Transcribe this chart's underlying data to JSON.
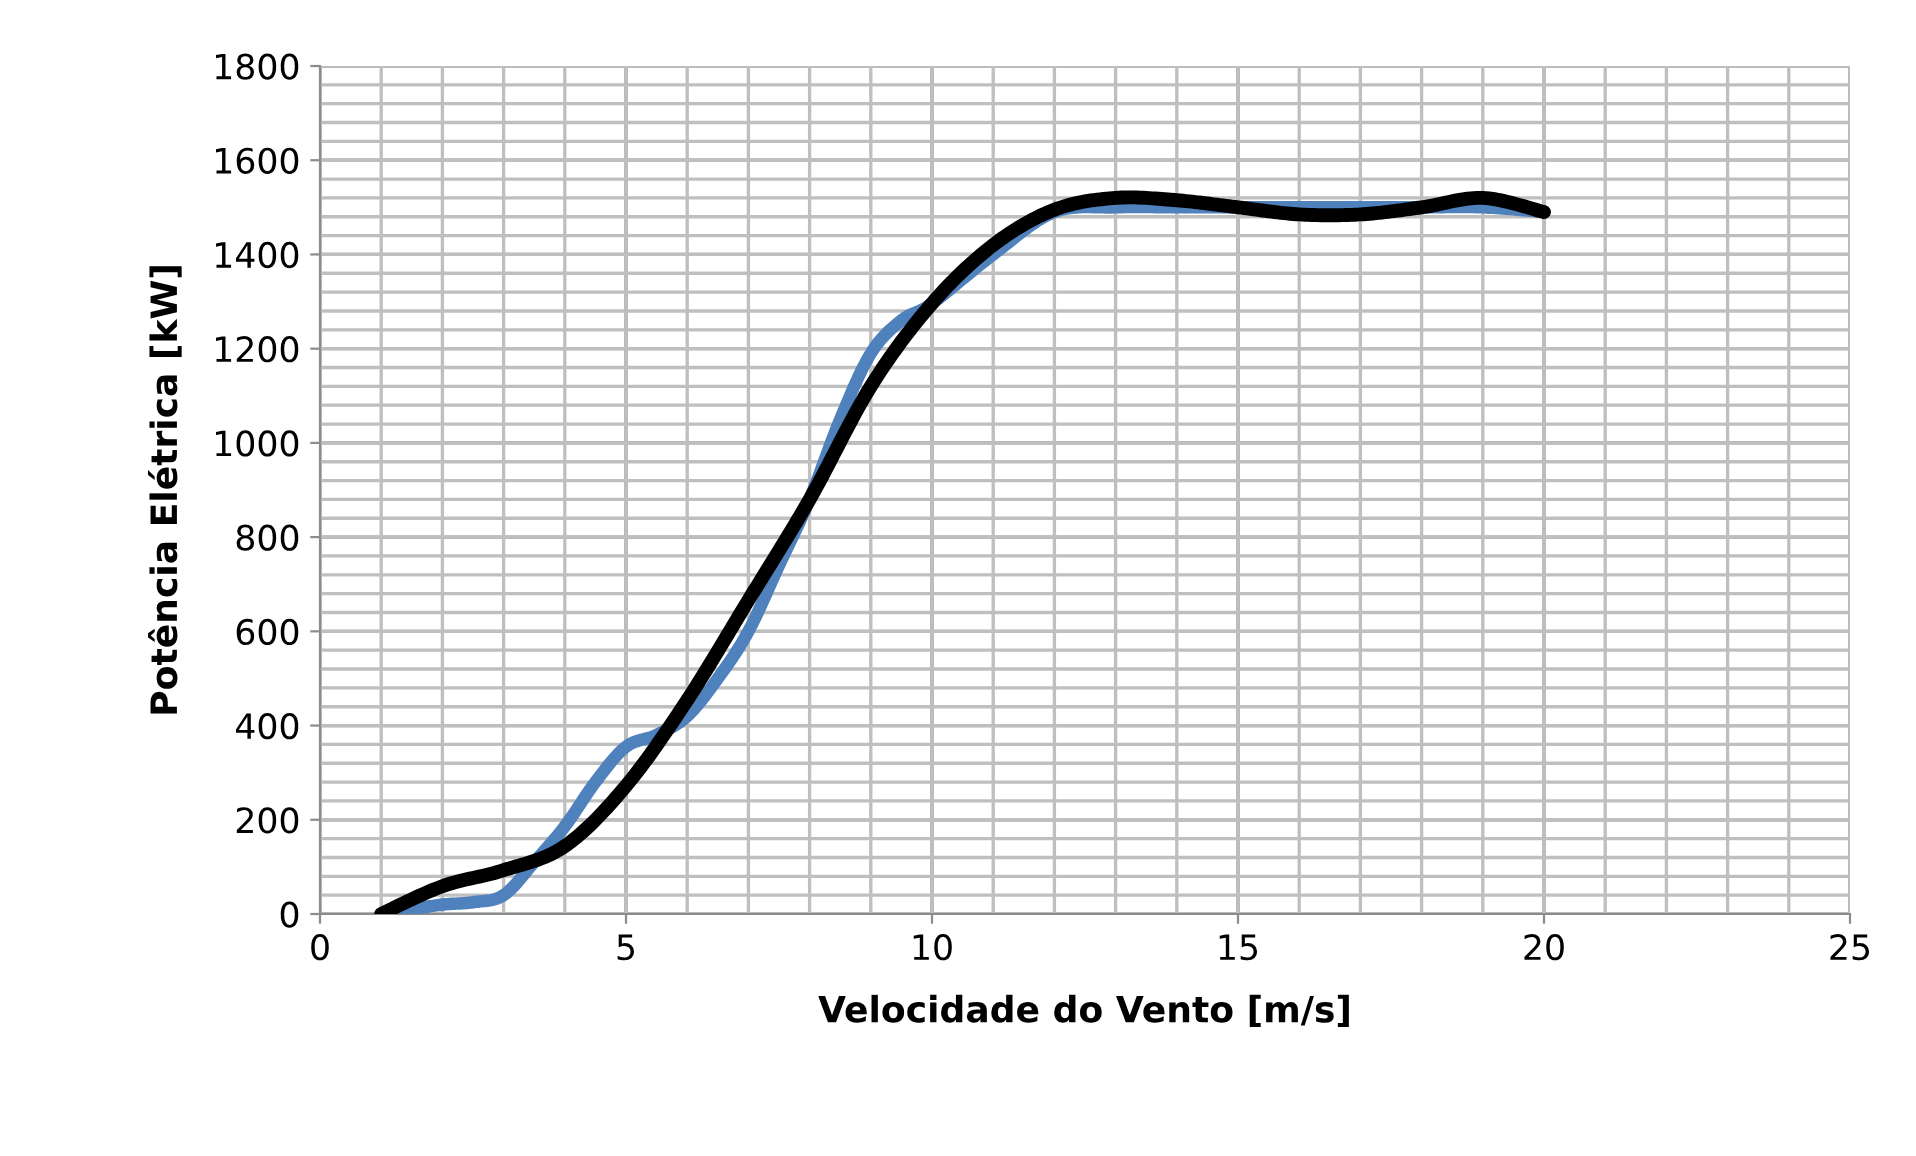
{
  "chart_data": {
    "type": "line",
    "xlabel": "Velocidade do Vento [m/s]",
    "ylabel": "Potência Elétrica [kW]",
    "xlim": [
      0,
      25
    ],
    "xticks": [
      0,
      5,
      10,
      15,
      20,
      25
    ],
    "ylim": [
      0,
      1800
    ],
    "yticks": [
      0,
      200,
      400,
      600,
      800,
      1000,
      1200,
      1400,
      1600,
      1800
    ],
    "grid": true,
    "marker": "none",
    "line_style": "solid",
    "series": [
      {
        "color": "#4f81bd",
        "x": [
          1,
          1.5,
          2,
          2.5,
          3,
          3.5,
          4,
          4.5,
          5,
          5.5,
          6,
          6.5,
          7,
          7.5,
          8,
          8.5,
          9,
          9.5,
          10,
          11,
          12,
          13,
          14,
          15,
          16,
          17,
          18,
          19,
          20
        ],
        "values": [
          0,
          10,
          20,
          25,
          40,
          110,
          186,
          280,
          355,
          380,
          420,
          500,
          600,
          740,
          880,
          1050,
          1190,
          1260,
          1296,
          1400,
          1490,
          1500,
          1500,
          1500,
          1500,
          1500,
          1500,
          1500,
          1490
        ]
      },
      {
        "color": "#000000",
        "x": [
          1,
          2,
          3,
          4,
          5,
          6,
          7,
          8,
          9,
          10,
          11,
          12,
          13,
          14,
          15,
          16,
          17,
          18,
          19,
          20
        ],
        "values": [
          0,
          59,
          93,
          144,
          272,
          454,
          666,
          880,
          1120,
          1296,
          1420,
          1495,
          1520,
          1515,
          1500,
          1485,
          1485,
          1500,
          1520,
          1490
        ]
      }
    ]
  }
}
